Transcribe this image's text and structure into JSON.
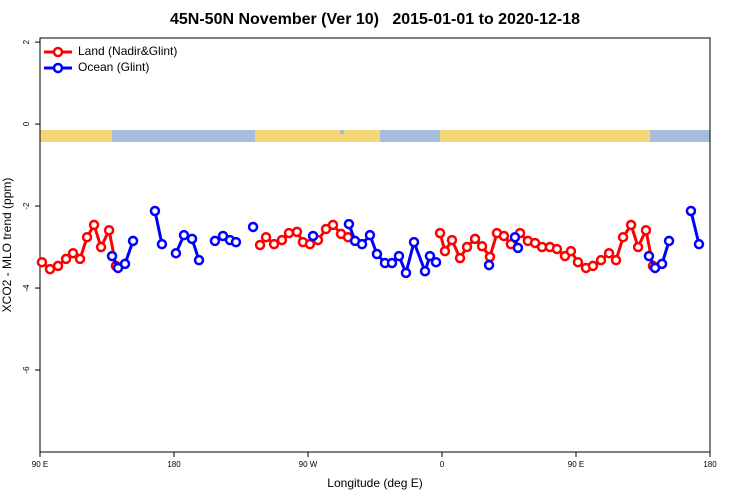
{
  "chart_data": {
    "type": "line",
    "title": "45N-50N November (Ver 10)   2015-01-01 to 2020-12-18",
    "xlabel": "Longitude (deg E)",
    "ylabel": "XCO2 - MLO trend (ppm)",
    "xlim": [
      90,
      540
    ],
    "ylim": [
      -8,
      2.1
    ],
    "xticks": [
      {
        "value": 90,
        "label": "90 E"
      },
      180,
      {
        "value": 270,
        "label": "90 W"
      },
      {
        "value": 360,
        "label": "0"
      },
      {
        "value": 450,
        "label": "90 E"
      },
      {
        "value": 540,
        "label": "180"
      }
    ],
    "yticks": [
      2,
      0,
      -2,
      -4,
      -6
    ],
    "legend": "top-left",
    "series": [
      {
        "name": "Land (Nadir&Glint)",
        "color": "#ff0000",
        "x": [
          91.3,
          96.7,
          102.1,
          107.5,
          112.2,
          116.9,
          121.6,
          126.3,
          131.0,
          136.4,
          141.0,
          null,
          237.8,
          241.8,
          247.2,
          252.5,
          257.2,
          262.6,
          266.6,
          271.3,
          276.7,
          282.1,
          286.8,
          292.2,
          296.9,
          null,
          358.7,
          362.0,
          366.7,
          372.1,
          376.8,
          382.2,
          386.9,
          392.2,
          396.9,
          401.6,
          406.3,
          412.4,
          417.7,
          422.5,
          427.2,
          432.5,
          437.2,
          442.6,
          446.6,
          451.3,
          456.7,
          461.4,
          466.8,
          472.2,
          476.9,
          481.6,
          487.0,
          491.7,
          497.0,
          501.7
        ],
        "values": [
          -3.37,
          -3.54,
          -3.46,
          -3.29,
          -3.15,
          -3.29,
          -2.76,
          -2.46,
          -3.0,
          -2.59,
          -3.46,
          null,
          -2.95,
          -2.76,
          -2.93,
          -2.83,
          -2.66,
          -2.63,
          -2.88,
          -2.93,
          -2.83,
          -2.56,
          -2.46,
          -2.68,
          -2.76,
          null,
          -2.66,
          -3.1,
          -2.83,
          -3.27,
          -3.0,
          -2.8,
          -2.98,
          -3.24,
          -2.66,
          -2.73,
          -2.93,
          -2.66,
          -2.85,
          -2.9,
          -3.0,
          -3.0,
          -3.05,
          -3.22,
          -3.1,
          -3.37,
          -3.51,
          -3.46,
          -3.32,
          -3.15,
          -3.32,
          -2.76,
          -2.46,
          -3.0,
          -2.59,
          -3.46
        ]
      },
      {
        "name": "Ocean (Glint)",
        "color": "#0000ff",
        "x": [
          138.4,
          142.4,
          147.1,
          152.5,
          null,
          167.2,
          171.9,
          null,
          181.3,
          186.7,
          192.1,
          196.8,
          null,
          207.5,
          212.9,
          217.6,
          221.6,
          null,
          233.1,
          null,
          273.4,
          null,
          297.5,
          301.6,
          306.3,
          311.6,
          316.3,
          321.7,
          326.4,
          331.1,
          335.8,
          341.2,
          348.6,
          351.9,
          356.0,
          null,
          391.6,
          null,
          409.0,
          411.0,
          null,
          499.0,
          503.1,
          507.8,
          512.5,
          null,
          527.2,
          532.6
        ],
        "values": [
          -3.22,
          -3.51,
          -3.41,
          -2.85,
          null,
          -2.12,
          -2.93,
          null,
          -3.15,
          -2.71,
          -2.8,
          -3.32,
          null,
          -2.85,
          -2.73,
          -2.83,
          -2.88,
          null,
          -2.51,
          null,
          -2.73,
          null,
          -2.44,
          -2.85,
          -2.93,
          -2.71,
          -3.17,
          -3.39,
          -3.39,
          -3.22,
          -3.63,
          -2.88,
          -3.59,
          -3.22,
          -3.37,
          null,
          -3.44,
          null,
          -2.76,
          -3.02,
          null,
          -3.22,
          -3.51,
          -3.41,
          -2.85,
          null,
          -2.12,
          -2.93
        ]
      }
    ]
  }
}
